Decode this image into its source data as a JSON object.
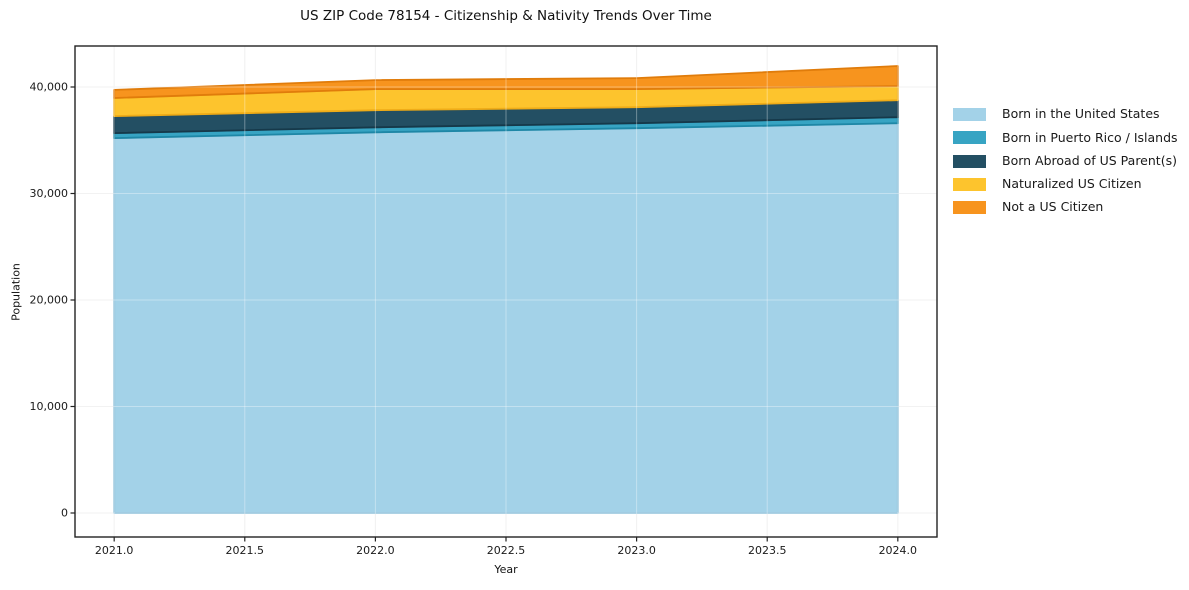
{
  "chart_data": {
    "type": "area",
    "stacked": true,
    "title": "US ZIP Code 78154 - Citizenship & Nativity Trends Over Time",
    "xlabel": "Year",
    "ylabel": "Population",
    "x": [
      2021,
      2022,
      2023,
      2024
    ],
    "series": [
      {
        "key": "born-in-united-states",
        "name": "Born in the United States",
        "fill": "#A3D2E8",
        "edge": "#8BBFD9",
        "values": [
          35200,
          35750,
          36130,
          36600
        ]
      },
      {
        "key": "born-in-puerto-rico-islands",
        "name": "Born in Puerto Rico / Islands",
        "fill": "#37A4C3",
        "edge": "#1E87A6",
        "values": [
          470,
          470,
          470,
          565
        ]
      },
      {
        "key": "born-abroad-of-us-parents",
        "name": "Born Abroad of US Parent(s)",
        "fill": "#234F63",
        "edge": "#16394A",
        "values": [
          1600,
          1600,
          1500,
          1600
        ]
      },
      {
        "key": "naturalized-us-citizen",
        "name": "Naturalized US Citizen",
        "fill": "#FDC42D",
        "edge": "#EFAC18",
        "values": [
          1700,
          1980,
          1700,
          1320
        ]
      },
      {
        "key": "not-a-us-citizen",
        "name": "Not a US Citizen",
        "fill": "#F7941E",
        "edge": "#E07C0B",
        "values": [
          760,
          850,
          1040,
          1890
        ]
      }
    ],
    "xlim": [
      2020.85,
      2024.15
    ],
    "ylim": [
      -2254,
      43850
    ],
    "xticks": {
      "values": [
        2021.0,
        2021.5,
        2022.0,
        2022.5,
        2023.0,
        2023.5,
        2024.0
      ],
      "labels": [
        "2021.0",
        "2021.5",
        "2022.0",
        "2022.5",
        "2023.0",
        "2023.5",
        "2024.0"
      ]
    },
    "yticks": {
      "values": [
        0,
        10000,
        20000,
        30000,
        40000
      ],
      "labels": [
        "0",
        "10,000",
        "20,000",
        "30,000",
        "40,000"
      ]
    },
    "grid": true,
    "legend_position": "outside-right",
    "colors": {
      "spine": "#222222",
      "grid_under": "#ebebeb",
      "grid_over_alpha": 0.35,
      "tick_label": "#1a1a1a",
      "background": "#ffffff"
    }
  }
}
